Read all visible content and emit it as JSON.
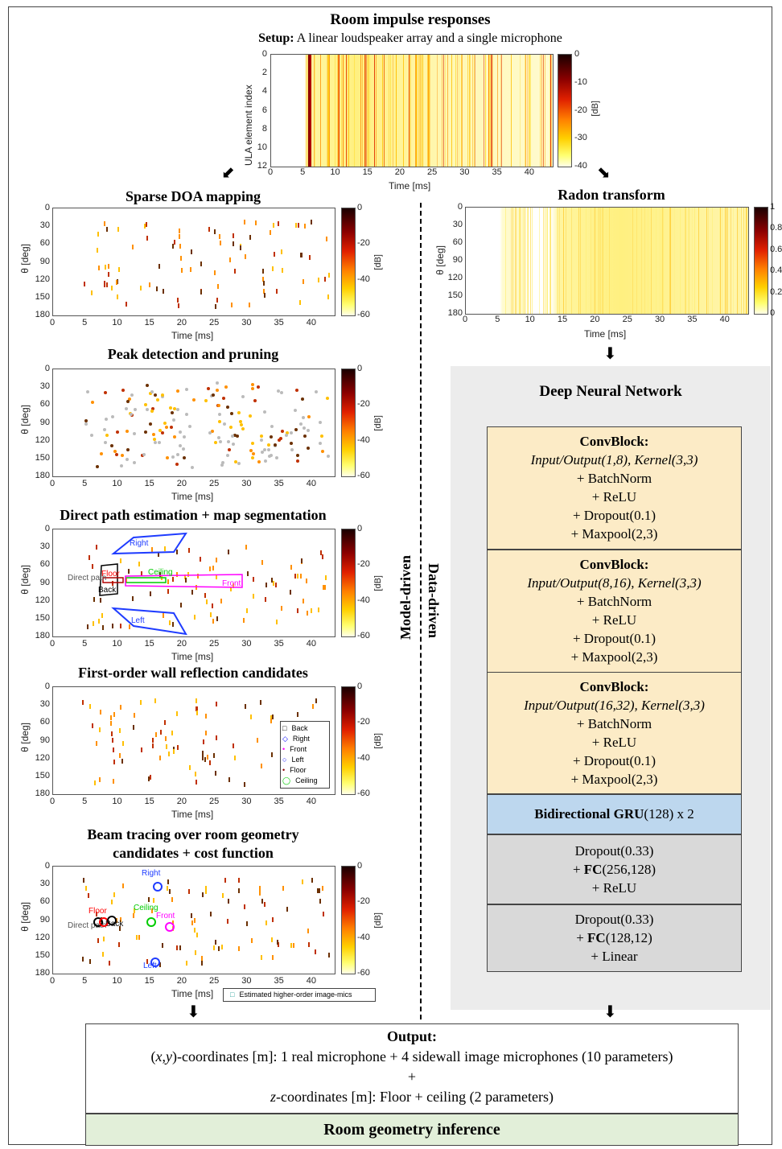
{
  "header": {
    "title": "Room impulse responses",
    "setup_label": "Setup:",
    "setup_text": " A linear loudspeaker array and a single microphone"
  },
  "top_plot": {
    "ylabel": "ULA element index",
    "xlabel": "Time [ms]",
    "yticks": [
      "0",
      "2",
      "4",
      "6",
      "8",
      "10",
      "12"
    ],
    "xticks": [
      "0",
      "5",
      "10",
      "15",
      "20",
      "25",
      "30",
      "35",
      "40"
    ],
    "cbar_ticks": [
      "0",
      "-10",
      "-20",
      "-30",
      "-40"
    ],
    "cbar_label": "[dB]"
  },
  "left": {
    "p1": {
      "title": "Sparse DOA mapping",
      "ylabel": "θ [deg]",
      "xlabel": "Time [ms]",
      "yticks": [
        "0",
        "30",
        "60",
        "90",
        "120",
        "150",
        "180"
      ],
      "xticks": [
        "0",
        "5",
        "10",
        "15",
        "20",
        "25",
        "30",
        "35",
        "40"
      ],
      "cbar_ticks": [
        "0",
        "-20",
        "-40",
        "-60"
      ],
      "cbar_label": "[dB]"
    },
    "p2": {
      "title": "Peak detection and pruning",
      "ylabel": "θ [deg]",
      "xlabel": "Time [ms]",
      "yticks": [
        "0",
        "30",
        "60",
        "90",
        "120",
        "150",
        "180"
      ],
      "xticks": [
        "0",
        "5",
        "10",
        "15",
        "20",
        "25",
        "30",
        "35",
        "40"
      ],
      "cbar_ticks": [
        "0",
        "-20",
        "-40",
        "-60"
      ],
      "cbar_label": "[dB]"
    },
    "p3": {
      "title": "Direct path estimation + map segmentation",
      "ylabel": "θ [deg]",
      "xlabel": "Time [ms]",
      "yticks": [
        "0",
        "30",
        "60",
        "90",
        "120",
        "150",
        "180"
      ],
      "xticks": [
        "0",
        "5",
        "10",
        "15",
        "20",
        "25",
        "30",
        "35",
        "40"
      ],
      "cbar_ticks": [
        "0",
        "-20",
        "-40",
        "-60"
      ],
      "cbar_label": "[dB]",
      "segments": {
        "right": "Right",
        "ceiling": "Ceiling",
        "direct": "Direct path",
        "floor": "Floor",
        "back": "Back",
        "front": "Front",
        "left": "Left"
      }
    },
    "p4": {
      "title": "First-order wall reflection candidates",
      "ylabel": "θ [deg]",
      "xlabel": "Time [ms]",
      "yticks": [
        "0",
        "30",
        "60",
        "90",
        "120",
        "150",
        "180"
      ],
      "xticks": [
        "0",
        "5",
        "10",
        "15",
        "20",
        "25",
        "30",
        "35",
        "40"
      ],
      "cbar_ticks": [
        "0",
        "-20",
        "-40",
        "-60"
      ],
      "cbar_label": "[dB]",
      "legend": [
        {
          "sym": "□",
          "label": "Back",
          "color": "#000000"
        },
        {
          "sym": "◇",
          "label": "Right",
          "color": "#0000ff"
        },
        {
          "sym": "•",
          "label": "Front",
          "color": "#ff00ff"
        },
        {
          "sym": "○",
          "label": "Left",
          "color": "#0000ff"
        },
        {
          "sym": "•",
          "label": "Floor",
          "color": "#8b0000"
        },
        {
          "sym": "◯",
          "label": "Ceiling",
          "color": "#00cc00"
        }
      ]
    },
    "p5": {
      "title_line1": "Beam tracing over room geometry",
      "title_line2": "candidates + cost function",
      "ylabel": "θ [deg]",
      "xlabel": "Time [ms]",
      "yticks": [
        "0",
        "30",
        "60",
        "90",
        "120",
        "150",
        "180"
      ],
      "xticks": [
        "0",
        "5",
        "10",
        "15",
        "20",
        "25",
        "30",
        "35",
        "40"
      ],
      "cbar_ticks": [
        "0",
        "-20",
        "-40",
        "-60"
      ],
      "cbar_label": "[dB]",
      "legend": "Estimated higher-order image-mics",
      "labels": {
        "right": "Right",
        "floor": "Floor",
        "ceiling": "Ceiling",
        "front": "Front",
        "direct": "Direct path",
        "back": "Back",
        "left": "Left"
      }
    }
  },
  "right": {
    "radon": {
      "title": "Radon transform",
      "ylabel": "θ [deg]",
      "xlabel": "Time [ms]",
      "yticks": [
        "0",
        "30",
        "60",
        "90",
        "120",
        "150",
        "180"
      ],
      "xticks": [
        "0",
        "5",
        "10",
        "15",
        "20",
        "25",
        "30",
        "35",
        "40"
      ],
      "cbar_ticks": [
        "1",
        "0.8",
        "0.6",
        "0.4",
        "0.2",
        "0"
      ]
    },
    "dnn_title": "Deep Neural Network",
    "blocks": [
      {
        "head": "ConvBlock:",
        "io": "Input/Output(1,8), Kernel(3,3)",
        "l1": "+ BatchNorm",
        "l2": "+ ReLU",
        "l3": "+ Dropout(0.1)",
        "l4": "+ Maxpool(2,3)"
      },
      {
        "head": "ConvBlock:",
        "io": "Input/Output(8,16), Kernel(3,3)",
        "l1": "+ BatchNorm",
        "l2": "+ ReLU",
        "l3": "+ Dropout(0.1)",
        "l4": "+ Maxpool(2,3)"
      },
      {
        "head": "ConvBlock:",
        "io": "Input/Output(16,32), Kernel(3,3)",
        "l1": "+ BatchNorm",
        "l2": "+ ReLU",
        "l3": "+ Dropout(0.1)",
        "l4": "+ Maxpool(2,3)"
      }
    ],
    "gru": {
      "bold": "Bidirectional GRU",
      "rest": "(128) x 2"
    },
    "fc1": {
      "l1": "Dropout(0.33)",
      "pre": "+ ",
      "fc": "FC",
      "args": "(256,128)",
      "l3": "+ ReLU"
    },
    "fc2": {
      "l1": "Dropout(0.33)",
      "pre": "+ ",
      "fc": "FC",
      "args": "(128,12)",
      "l3": "+ Linear"
    }
  },
  "divider": {
    "model": "Model-driven",
    "data": "Data-driven"
  },
  "output": {
    "title": "Output:",
    "line1_a": "(",
    "line1_x": "x",
    "line1_b": ",",
    "line1_y": "y",
    "line1_c": ")-coordinates [m]: 1 real microphone + 4 sidewall image microphones (10 parameters)",
    "plus": "+",
    "line2_z": "z",
    "line2_rest": "-coordinates [m]: Floor + ceiling (2 parameters)"
  },
  "inference": "Room geometry inference"
}
